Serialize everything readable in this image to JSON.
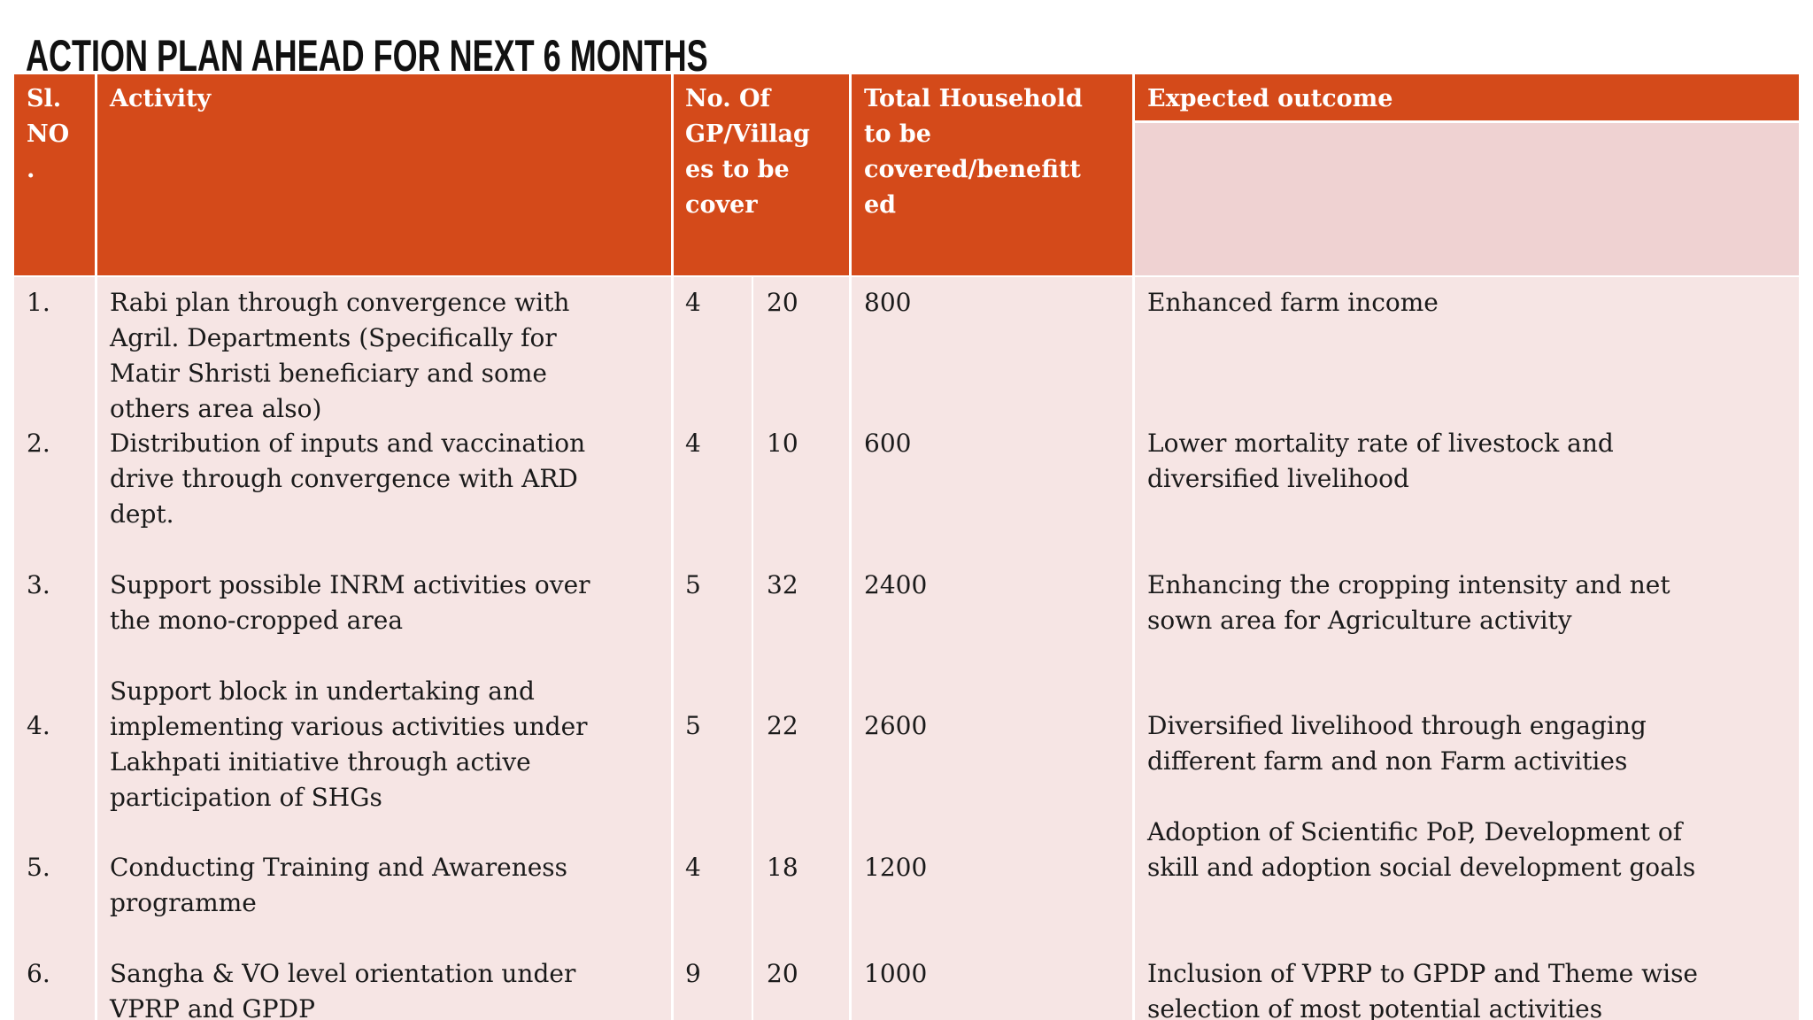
{
  "title": "ACTION PLAN AHEAD FOR NEXT 6 MONTHS",
  "header": [
    {
      "lines": [
        "Sl.",
        "NO",
        "."
      ]
    },
    {
      "lines": [
        "Activity"
      ]
    },
    {
      "lines": [
        "No. Of",
        "GP/Villag",
        "es to be",
        "cover"
      ]
    },
    {
      "lines": [
        "Total Household",
        "to be",
        "covered/benefitt",
        "ed"
      ]
    },
    {
      "lines": [
        "Expected outcome"
      ]
    }
  ],
  "rows": [
    {
      "sl": "1.",
      "activity": [
        "Rabi plan through convergence with",
        "Agril. Departments (Specifically for",
        "Matir Shristi beneficiary and some",
        "others area also)"
      ],
      "gp": "4",
      "villages": "20",
      "households": "800",
      "outcome": [
        "Enhanced farm income"
      ]
    },
    {
      "sl": "2.",
      "activity": [
        "Distribution of inputs and vaccination",
        "drive through convergence with ARD",
        "dept."
      ],
      "gp": "4",
      "villages": "10",
      "households": "600",
      "outcome": [
        "Lower mortality rate of livestock and",
        "diversified livelihood"
      ]
    },
    {
      "sl": "3.",
      "activity": [
        "Support possible INRM activities over",
        "the mono-cropped area"
      ],
      "gp": "5",
      "villages": "32",
      "households": "2400",
      "outcome": [
        "Enhancing the cropping intensity and net",
        "sown area for Agriculture activity"
      ]
    },
    {
      "sl": "4.",
      "activity": [
        "Support block in undertaking and",
        "implementing various activities under",
        "Lakhpati initiative through active",
        "participation of SHGs"
      ],
      "gp": "5",
      "villages": "22",
      "households": "2600",
      "outcome": [
        "Diversified livelihood through engaging",
        "different farm and non Farm activities"
      ]
    },
    {
      "sl": "5.",
      "activity": [
        "Conducting Training and Awareness",
        "programme"
      ],
      "gp": "4",
      "villages": "18",
      "households": "1200",
      "outcome": [
        "Adoption of Scientific PoP, Development of",
        "skill and adoption social development goals"
      ]
    },
    {
      "sl": "6.",
      "activity": [
        "Sangha & VO level orientation under",
        "VPRP and GPDP"
      ],
      "gp": "9",
      "villages": "20",
      "households": "1000",
      "outcome": [
        "Inclusion of VPRP to GPDP and  Theme wise",
        "selection of most potential activities"
      ]
    }
  ]
}
